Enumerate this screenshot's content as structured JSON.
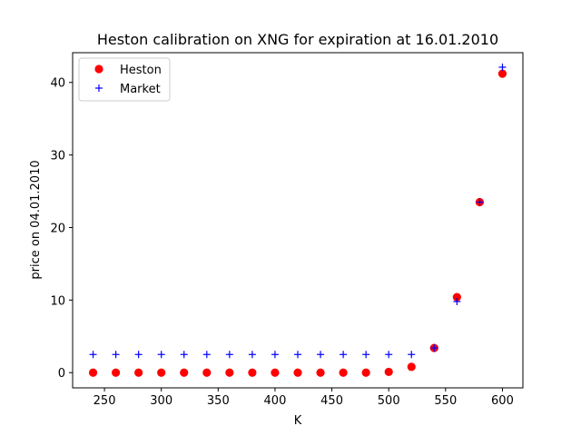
{
  "chart_data": {
    "type": "scatter",
    "title": "Heston calibration on XNG for expiration at 16.01.2010",
    "xlabel": "K",
    "ylabel": "price on 04.01.2010",
    "xlim": [
      222,
      618
    ],
    "ylim": [
      -2.1,
      44.1
    ],
    "xticks": [
      250,
      300,
      350,
      400,
      450,
      500,
      550,
      600
    ],
    "yticks": [
      0,
      10,
      20,
      30,
      40
    ],
    "legend": {
      "placement": "upper-left"
    },
    "grid": false,
    "series": [
      {
        "name": "Heston",
        "marker": "circle",
        "color": "#ff0000",
        "x": [
          240,
          260,
          280,
          300,
          320,
          340,
          360,
          380,
          400,
          420,
          440,
          460,
          480,
          500,
          520,
          540,
          560,
          580,
          600
        ],
        "y": [
          0.0,
          0.0,
          0.0,
          0.0,
          0.0,
          0.0,
          0.0,
          0.0,
          0.0,
          0.0,
          0.0,
          0.0,
          0.0,
          0.1,
          0.8,
          3.4,
          10.4,
          23.5,
          41.2
        ]
      },
      {
        "name": "Market",
        "marker": "plus",
        "color": "#0000ff",
        "x": [
          240,
          260,
          280,
          300,
          320,
          340,
          360,
          380,
          400,
          420,
          440,
          460,
          480,
          500,
          520,
          540,
          560,
          580,
          600
        ],
        "y": [
          2.5,
          2.5,
          2.5,
          2.5,
          2.5,
          2.5,
          2.5,
          2.5,
          2.5,
          2.5,
          2.5,
          2.5,
          2.5,
          2.5,
          2.5,
          3.4,
          9.8,
          23.5,
          42.1
        ]
      }
    ]
  }
}
